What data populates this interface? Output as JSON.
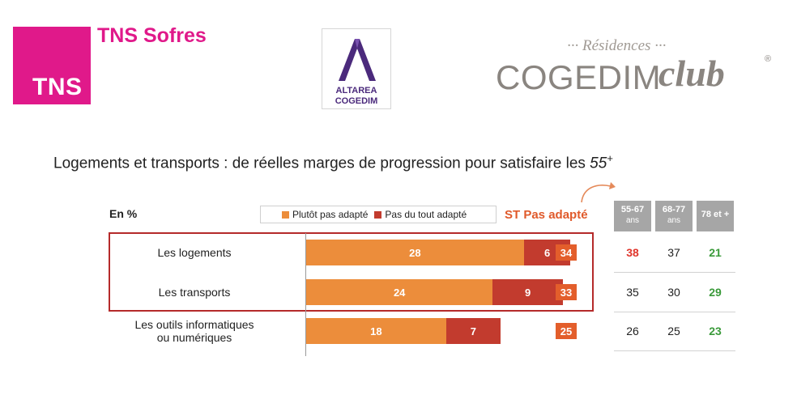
{
  "logos": {
    "tns_box": "TNS",
    "tns_sofres": "TNS Sofres",
    "altarea_line1": "ALTAREA",
    "altarea_line2": "COGEDIM",
    "residences": "··· Résidences ···",
    "cogedim": "COGEDIM",
    "club": "club",
    "registered": "®"
  },
  "title_main": "Logements et transports : de réelles marges de progression pour satisfaire les ",
  "title_age": "55",
  "title_plus": "+",
  "unit_label": "En %",
  "colors": {
    "plutot": "#ec8d3b",
    "pas_du_tout": "#c23b2e",
    "st_badge": "#e35e2b",
    "red_value": "#e0352b",
    "green_value": "#3a9a3a",
    "outline": "#b52a2a"
  },
  "chart_data": {
    "type": "bar",
    "stacked": true,
    "orientation": "horizontal",
    "unit": "%",
    "categories": [
      "Les logements",
      "Les transports",
      "Les outils informatiques ou numériques"
    ],
    "series": [
      {
        "name": "Plutôt pas adapté",
        "values": [
          28,
          24,
          18
        ]
      },
      {
        "name": "Pas du tout adapté",
        "values": [
          6,
          9,
          7
        ]
      }
    ],
    "st_label": "ST Pas adapté",
    "st_values": [
      34,
      33,
      25
    ],
    "xlim": [
      0,
      60
    ],
    "age_groups": [
      {
        "label": "55-67",
        "sub": "ans",
        "values": [
          38,
          35,
          26
        ],
        "highlight": [
          "red",
          "none",
          "none"
        ]
      },
      {
        "label": "68-77",
        "sub": "ans",
        "values": [
          37,
          30,
          25
        ],
        "highlight": [
          "none",
          "none",
          "none"
        ]
      },
      {
        "label": "78 et +",
        "sub": "",
        "values": [
          21,
          29,
          23
        ],
        "highlight": [
          "green",
          "green",
          "green"
        ]
      }
    ],
    "highlighted_rows": [
      0,
      1
    ],
    "legend_position": "top"
  },
  "row_labels": [
    [
      "Les logements"
    ],
    [
      "Les transports"
    ],
    [
      "Les outils informatiques",
      "ou numériques"
    ]
  ]
}
